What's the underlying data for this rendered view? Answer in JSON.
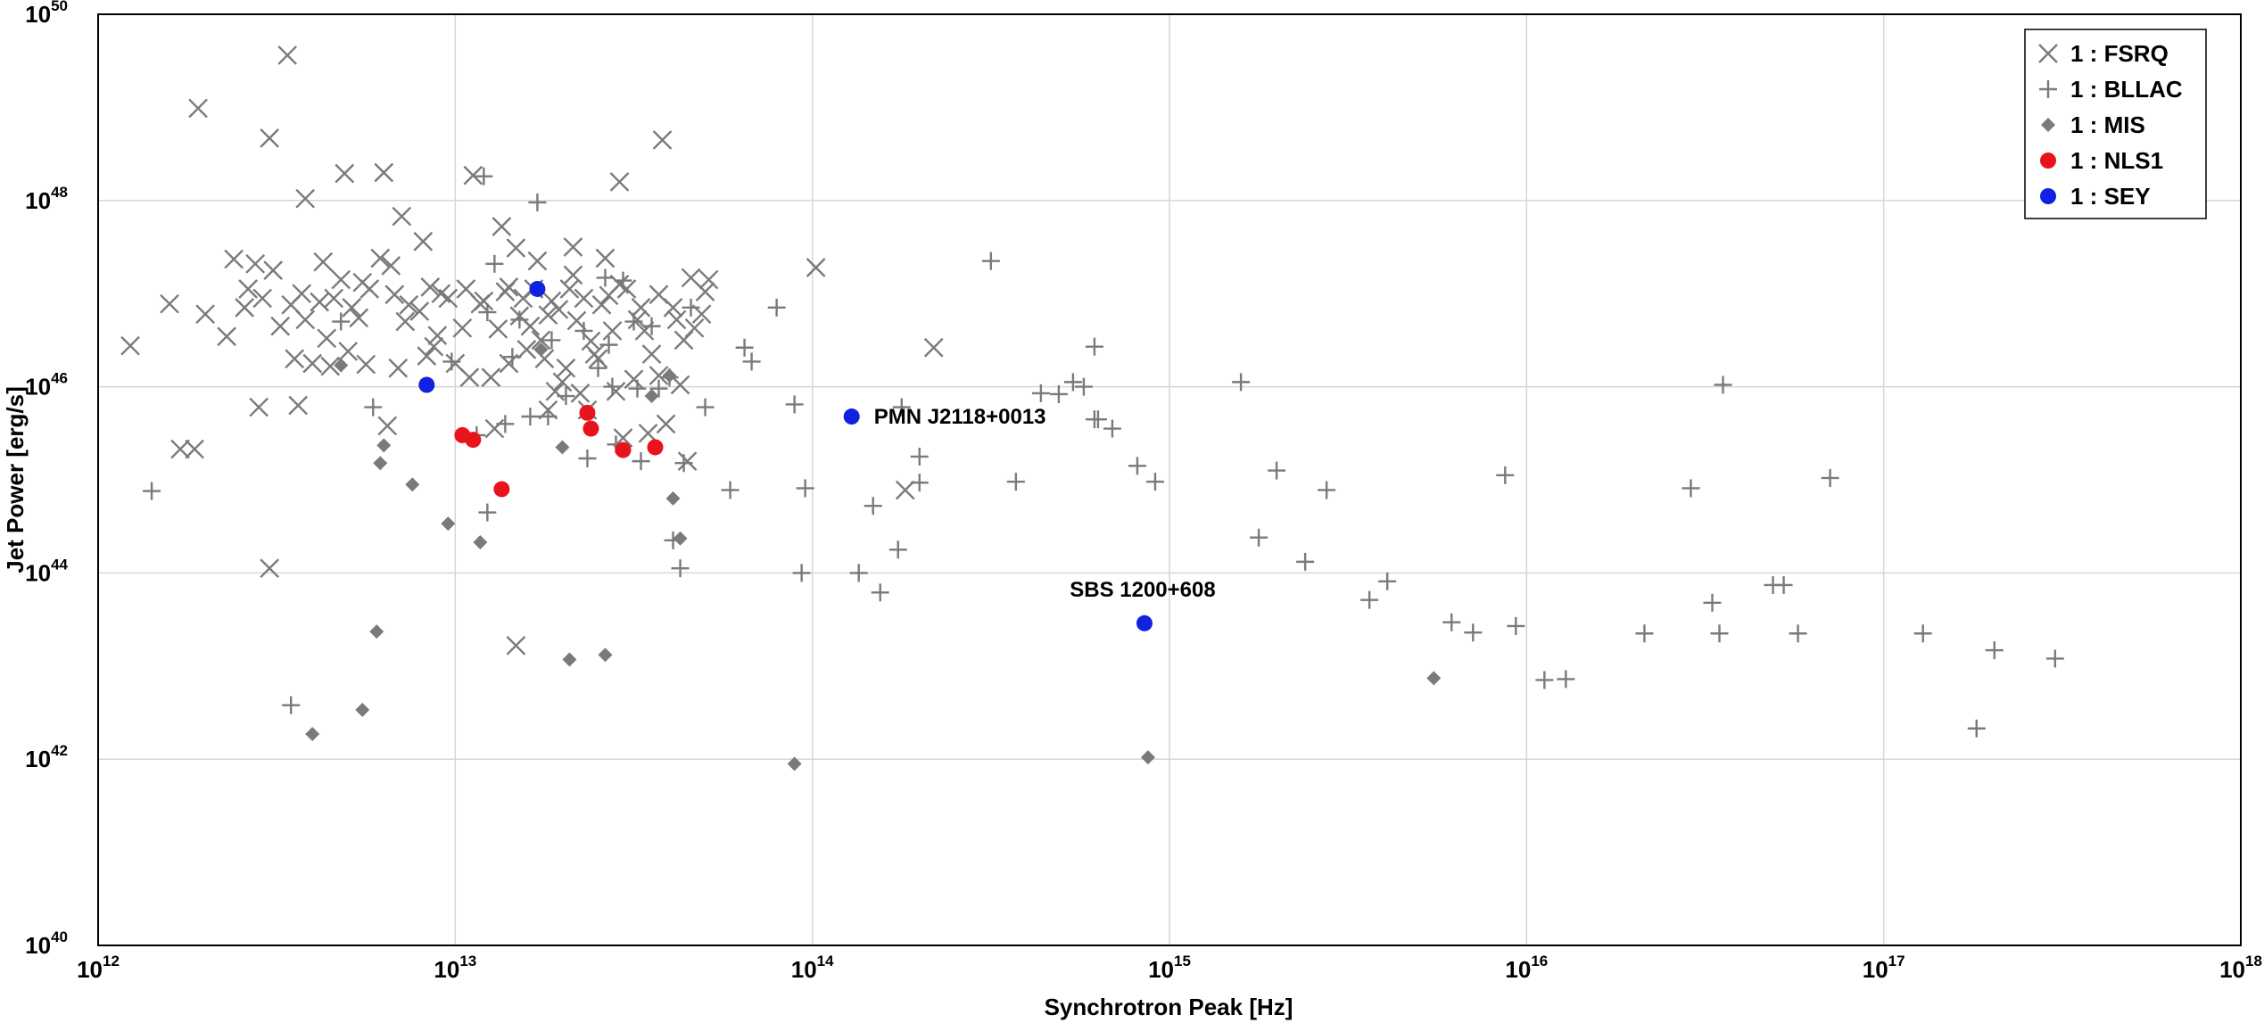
{
  "chart_data": {
    "type": "scatter",
    "title": "",
    "xlabel": "Synchrotron Peak [Hz]",
    "ylabel": "Jet Power [erg/s]",
    "xscale": "log",
    "yscale": "log",
    "xlim": [
      1000000000000.0,
      1e+18
    ],
    "ylim": [
      1e+40,
      1e+50
    ],
    "grid": true,
    "legend_position": "top-right",
    "x_ticks": [
      {
        "base": "10",
        "exp": "12"
      },
      {
        "base": "10",
        "exp": "13"
      },
      {
        "base": "10",
        "exp": "14"
      },
      {
        "base": "10",
        "exp": "15"
      },
      {
        "base": "10",
        "exp": "16"
      },
      {
        "base": "10",
        "exp": "17"
      },
      {
        "base": "10",
        "exp": "18"
      }
    ],
    "y_ticks": [
      {
        "base": "10",
        "exp": "40"
      },
      {
        "base": "10",
        "exp": "42"
      },
      {
        "base": "10",
        "exp": "44"
      },
      {
        "base": "10",
        "exp": "46"
      },
      {
        "base": "10",
        "exp": "48"
      },
      {
        "base": "10",
        "exp": "50"
      }
    ],
    "series": [
      {
        "name": "1 : FSRQ",
        "marker": "x",
        "color": "#7a7a7a",
        "points": [
          [
            12.28,
            48.99
          ],
          [
            12.48,
            48.67
          ],
          [
            12.53,
            49.56
          ],
          [
            12.3,
            46.78
          ],
          [
            12.49,
            47.25
          ],
          [
            12.38,
            47.37
          ],
          [
            12.44,
            47.32
          ],
          [
            12.58,
            48.02
          ],
          [
            12.69,
            48.29
          ],
          [
            12.8,
            48.3
          ],
          [
            12.63,
            47.34
          ],
          [
            12.68,
            47.15
          ],
          [
            12.74,
            47.12
          ],
          [
            12.79,
            47.38
          ],
          [
            12.82,
            47.3
          ],
          [
            12.85,
            47.83
          ],
          [
            12.91,
            47.56
          ],
          [
            12.96,
            47.0
          ],
          [
            13.05,
            48.27
          ],
          [
            13.13,
            47.72
          ],
          [
            13.17,
            47.49
          ],
          [
            13.23,
            47.35
          ],
          [
            13.15,
            47.07
          ],
          [
            13.26,
            46.77
          ],
          [
            13.33,
            47.2
          ],
          [
            13.42,
            47.38
          ],
          [
            13.46,
            48.2
          ],
          [
            13.58,
            48.65
          ],
          [
            13.66,
            47.17
          ],
          [
            13.7,
            47.02
          ],
          [
            12.09,
            46.44
          ],
          [
            12.2,
            46.89
          ],
          [
            12.36,
            46.54
          ],
          [
            12.41,
            46.85
          ],
          [
            12.51,
            46.65
          ],
          [
            12.58,
            46.72
          ],
          [
            12.64,
            46.52
          ],
          [
            12.73,
            46.74
          ],
          [
            12.86,
            46.7
          ],
          [
            12.9,
            46.81
          ],
          [
            12.95,
            46.55
          ],
          [
            13.02,
            46.63
          ],
          [
            13.07,
            46.89
          ],
          [
            13.12,
            46.62
          ],
          [
            13.18,
            46.76
          ],
          [
            13.24,
            46.5
          ],
          [
            13.29,
            46.83
          ],
          [
            13.34,
            46.71
          ],
          [
            13.38,
            46.49
          ],
          [
            13.41,
            46.88
          ],
          [
            13.44,
            46.6
          ],
          [
            13.51,
            46.72
          ],
          [
            13.55,
            46.35
          ],
          [
            13.61,
            46.85
          ],
          [
            13.67,
            46.63
          ],
          [
            12.42,
            47.05
          ],
          [
            12.46,
            46.95
          ],
          [
            12.54,
            46.88
          ],
          [
            12.57,
            47.0
          ],
          [
            12.62,
            46.91
          ],
          [
            12.66,
            46.95
          ],
          [
            12.71,
            46.85
          ],
          [
            12.76,
            47.05
          ],
          [
            12.83,
            46.99
          ],
          [
            12.87,
            46.88
          ],
          [
            12.93,
            47.07
          ],
          [
            12.98,
            46.95
          ],
          [
            13.03,
            47.05
          ],
          [
            13.08,
            46.92
          ],
          [
            13.14,
            47.02
          ],
          [
            13.19,
            46.95
          ],
          [
            13.22,
            47.05
          ],
          [
            13.27,
            46.92
          ],
          [
            13.32,
            47.05
          ],
          [
            13.36,
            46.95
          ],
          [
            13.43,
            46.98
          ],
          [
            13.48,
            47.05
          ],
          [
            13.52,
            46.85
          ],
          [
            13.57,
            46.99
          ],
          [
            13.62,
            46.72
          ],
          [
            12.45,
            45.78
          ],
          [
            12.56,
            45.8
          ],
          [
            12.55,
            46.3
          ],
          [
            12.6,
            46.25
          ],
          [
            12.65,
            46.22
          ],
          [
            12.7,
            46.38
          ],
          [
            12.75,
            46.24
          ],
          [
            12.84,
            46.2
          ],
          [
            12.94,
            46.43
          ],
          [
            13.0,
            46.25
          ],
          [
            13.04,
            46.1
          ],
          [
            13.1,
            46.1
          ],
          [
            13.15,
            46.25
          ],
          [
            13.2,
            46.4
          ],
          [
            13.25,
            46.3
          ],
          [
            13.3,
            46.05
          ],
          [
            13.35,
            45.93
          ],
          [
            13.45,
            45.95
          ],
          [
            13.5,
            46.08
          ],
          [
            13.57,
            46.12
          ],
          [
            13.63,
            46.02
          ],
          [
            12.23,
            45.33
          ],
          [
            12.27,
            45.33
          ],
          [
            12.48,
            44.05
          ],
          [
            13.17,
            43.22
          ],
          [
            13.28,
            45.95
          ],
          [
            13.31,
            46.2
          ],
          [
            13.37,
            45.75
          ],
          [
            13.4,
            46.3
          ],
          [
            13.47,
            45.45
          ],
          [
            13.54,
            45.5
          ],
          [
            13.59,
            45.6
          ],
          [
            13.65,
            45.2
          ],
          [
            13.69,
            46.78
          ],
          [
            13.71,
            47.15
          ],
          [
            12.81,
            45.58
          ],
          [
            12.92,
            46.33
          ],
          [
            13.11,
            45.55
          ],
          [
            13.21,
            46.65
          ],
          [
            13.26,
            45.75
          ],
          [
            13.33,
            47.5
          ],
          [
            13.39,
            46.35
          ],
          [
            13.46,
            47.1
          ],
          [
            13.53,
            46.6
          ],
          [
            13.64,
            46.5
          ],
          [
            14.26,
            44.89
          ],
          [
            14.01,
            47.28
          ],
          [
            14.34,
            46.42
          ]
        ]
      },
      {
        "name": "1 : BLLAC",
        "marker": "+",
        "color": "#7a7a7a",
        "points": [
          [
            12.15,
            44.88
          ],
          [
            12.54,
            42.58
          ],
          [
            12.68,
            46.7
          ],
          [
            12.77,
            45.78
          ],
          [
            12.99,
            46.27
          ],
          [
            13.06,
            45.48
          ],
          [
            13.08,
            48.26
          ],
          [
            13.09,
            44.65
          ],
          [
            13.11,
            47.32
          ],
          [
            13.14,
            45.6
          ],
          [
            13.18,
            46.72
          ],
          [
            13.23,
            47.98
          ],
          [
            13.26,
            45.68
          ],
          [
            13.31,
            45.9
          ],
          [
            13.37,
            45.23
          ],
          [
            13.42,
            47.17
          ],
          [
            13.47,
            47.14
          ],
          [
            13.52,
            45.2
          ],
          [
            13.57,
            45.98
          ],
          [
            13.6,
            46.1
          ],
          [
            13.66,
            46.85
          ],
          [
            13.7,
            45.78
          ],
          [
            13.77,
            44.89
          ],
          [
            13.81,
            46.42
          ],
          [
            13.83,
            46.27
          ],
          [
            13.9,
            46.85
          ],
          [
            13.95,
            45.81
          ],
          [
            14.25,
            45.78
          ],
          [
            14.3,
            44.97
          ],
          [
            14.5,
            47.35
          ],
          [
            14.57,
            44.98
          ],
          [
            14.64,
            45.93
          ],
          [
            14.69,
            45.92
          ],
          [
            14.73,
            46.05
          ],
          [
            14.76,
            46.0
          ],
          [
            14.79,
            46.43
          ],
          [
            14.79,
            45.65
          ],
          [
            14.8,
            45.65
          ],
          [
            14.84,
            45.55
          ],
          [
            14.91,
            45.15
          ],
          [
            14.96,
            44.98
          ],
          [
            15.2,
            46.05
          ],
          [
            15.25,
            44.38
          ],
          [
            15.3,
            45.1
          ],
          [
            15.38,
            44.12
          ],
          [
            15.44,
            44.89
          ],
          [
            15.56,
            43.71
          ],
          [
            15.61,
            43.91
          ],
          [
            15.79,
            43.47
          ],
          [
            15.85,
            43.36
          ],
          [
            15.94,
            45.05
          ],
          [
            15.97,
            43.43
          ],
          [
            16.05,
            42.85
          ],
          [
            16.11,
            42.86
          ],
          [
            16.33,
            43.35
          ],
          [
            16.46,
            44.91
          ],
          [
            16.52,
            43.68
          ],
          [
            16.54,
            43.35
          ],
          [
            16.69,
            43.87
          ],
          [
            16.72,
            43.87
          ],
          [
            16.76,
            43.35
          ],
          [
            16.85,
            45.02
          ],
          [
            17.11,
            43.35
          ],
          [
            17.31,
            43.17
          ],
          [
            17.48,
            43.08
          ],
          [
            16.55,
            46.02
          ],
          [
            17.26,
            42.33
          ],
          [
            13.63,
            44.05
          ],
          [
            13.64,
            45.18
          ],
          [
            13.61,
            44.35
          ],
          [
            13.97,
            44.0
          ],
          [
            14.3,
            45.25
          ],
          [
            14.17,
            44.72
          ],
          [
            14.19,
            43.79
          ],
          [
            14.24,
            44.25
          ],
          [
            14.13,
            44.0
          ],
          [
            13.98,
            44.91
          ],
          [
            13.4,
            46.2
          ],
          [
            13.43,
            46.45
          ],
          [
            13.45,
            45.38
          ],
          [
            13.44,
            46.0
          ],
          [
            13.5,
            46.7
          ],
          [
            13.27,
            46.5
          ],
          [
            13.21,
            45.68
          ],
          [
            13.16,
            46.32
          ],
          [
            13.36,
            46.6
          ],
          [
            13.09,
            46.8
          ],
          [
            13.55,
            46.65
          ],
          [
            13.51,
            45.98
          ]
        ]
      },
      {
        "name": "1 : MIS",
        "marker": "diamond",
        "color": "#7a7a7a",
        "points": [
          [
            12.6,
            42.27
          ],
          [
            12.74,
            42.53
          ],
          [
            12.78,
            43.37
          ],
          [
            12.79,
            45.18
          ],
          [
            12.88,
            44.95
          ],
          [
            12.98,
            44.53
          ],
          [
            13.07,
            44.33
          ],
          [
            13.32,
            43.07
          ],
          [
            13.42,
            43.12
          ],
          [
            13.61,
            44.8
          ],
          [
            13.63,
            44.37
          ],
          [
            13.95,
            41.95
          ],
          [
            14.94,
            42.02
          ],
          [
            15.74,
            42.87
          ],
          [
            12.8,
            45.37
          ],
          [
            12.68,
            46.23
          ],
          [
            13.3,
            45.35
          ],
          [
            13.24,
            46.4
          ],
          [
            13.55,
            45.9
          ],
          [
            13.6,
            46.12
          ]
        ]
      },
      {
        "name": "1 : NLS1",
        "marker": "circle",
        "color": "#e8141b",
        "points": [
          [
            13.02,
            45.48
          ],
          [
            13.05,
            45.43
          ],
          [
            13.13,
            44.9
          ],
          [
            13.37,
            45.72
          ],
          [
            13.38,
            45.55
          ],
          [
            13.47,
            45.32
          ],
          [
            13.56,
            45.35
          ]
        ]
      },
      {
        "name": "1 : SEY",
        "marker": "circle",
        "color": "#1021e0",
        "points": [
          [
            12.92,
            46.02
          ],
          [
            13.23,
            47.05
          ],
          [
            14.11,
            45.68
          ],
          [
            14.93,
            43.46
          ]
        ]
      }
    ],
    "annotations": [
      {
        "text": "PMN J2118+0013",
        "x": 14.11,
        "y": 45.68
      },
      {
        "text": "SBS 1200+608",
        "x": 14.93,
        "y": 43.46
      }
    ]
  }
}
